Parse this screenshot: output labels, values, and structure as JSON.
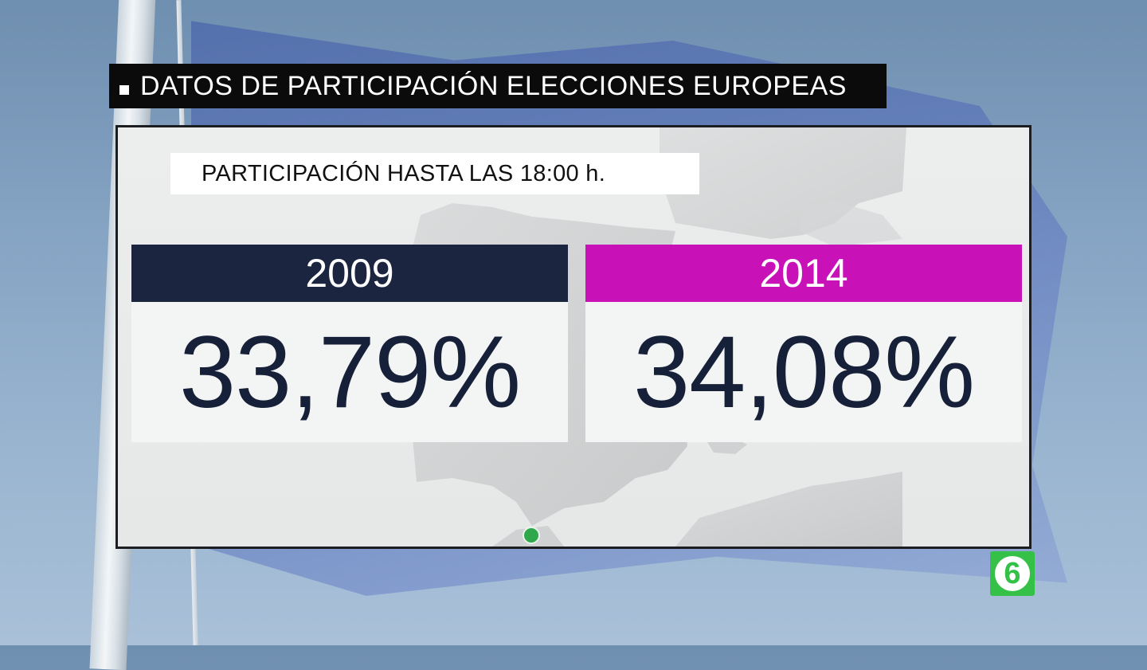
{
  "title_bar": {
    "text": "DATOS DE PARTICIPACIÓN ELECCIONES EUROPEAS"
  },
  "subtitle": "PARTICIPACIÓN HASTA LAS 18:00 h.",
  "cards": [
    {
      "year": "2009",
      "value": "33,79%",
      "header_color": "#1b2540"
    },
    {
      "year": "2014",
      "value": "34,08%",
      "header_color": "#c812b7"
    }
  ],
  "channel_logo": {
    "glyph": "6",
    "color": "#35c148"
  }
}
